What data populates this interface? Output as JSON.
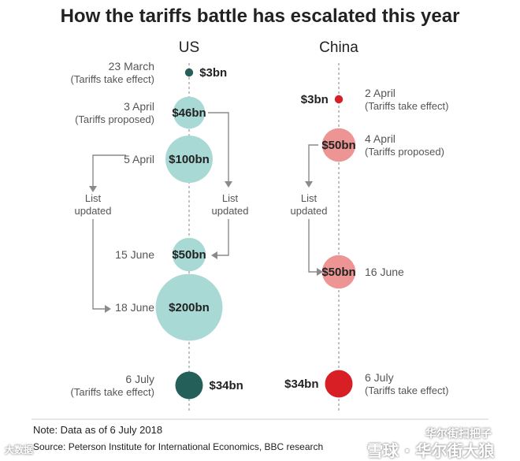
{
  "chart_data": {
    "type": "bubble-timeline",
    "title": "How the tariffs battle has escalated this year",
    "columns": [
      {
        "key": "us",
        "name": "US",
        "events": [
          {
            "date": "23 March",
            "note": "(Tariffs take effect)",
            "value_bn": 3,
            "label": "$3bn",
            "status": "in effect"
          },
          {
            "date": "3 April",
            "note": "(Tariffs proposed)",
            "value_bn": 46,
            "label": "$46bn",
            "status": "proposed"
          },
          {
            "date": "5 April",
            "note": "",
            "value_bn": 100,
            "label": "$100bn",
            "status": "proposed"
          },
          {
            "date": "15 June",
            "note": "",
            "value_bn": 50,
            "label": "$50bn",
            "status": "proposed"
          },
          {
            "date": "18 June",
            "note": "",
            "value_bn": 200,
            "label": "$200bn",
            "status": "proposed"
          },
          {
            "date": "6 July",
            "note": "(Tariffs take effect)",
            "value_bn": 34,
            "label": "$34bn",
            "status": "in effect"
          }
        ]
      },
      {
        "key": "china",
        "name": "China",
        "events": [
          {
            "date": "2 April",
            "note": "(Tariffs take effect)",
            "value_bn": 3,
            "label": "$3bn",
            "status": "in effect"
          },
          {
            "date": "4 April",
            "note": "(Tariffs proposed)",
            "value_bn": 50,
            "label": "$50bn",
            "status": "proposed"
          },
          {
            "date": "16 June",
            "note": "",
            "value_bn": 50,
            "label": "$50bn",
            "status": "proposed"
          },
          {
            "date": "6 July",
            "note": "(Tariffs take effect)",
            "value_bn": 34,
            "label": "$34bn",
            "status": "in effect"
          }
        ]
      }
    ],
    "update_label_line1": "List",
    "update_label_line2": "updated",
    "note": "Note: Data as of 6 July 2018",
    "source": "Source: Peterson Institute for International Economics, BBC research"
  },
  "colors": {
    "us_proposed": "#a9d9d5",
    "us_effect": "#245f5a",
    "china_proposed": "#ec9594",
    "china_effect": "#d81f25",
    "text_dark": "#222222",
    "text_grey": "#555555",
    "connector": "#8a8a8a"
  },
  "watermarks": {
    "left": "大数据",
    "right_top": "华尔街扫把子",
    "right_bottom": "雪球 · 华尔街大狼"
  }
}
